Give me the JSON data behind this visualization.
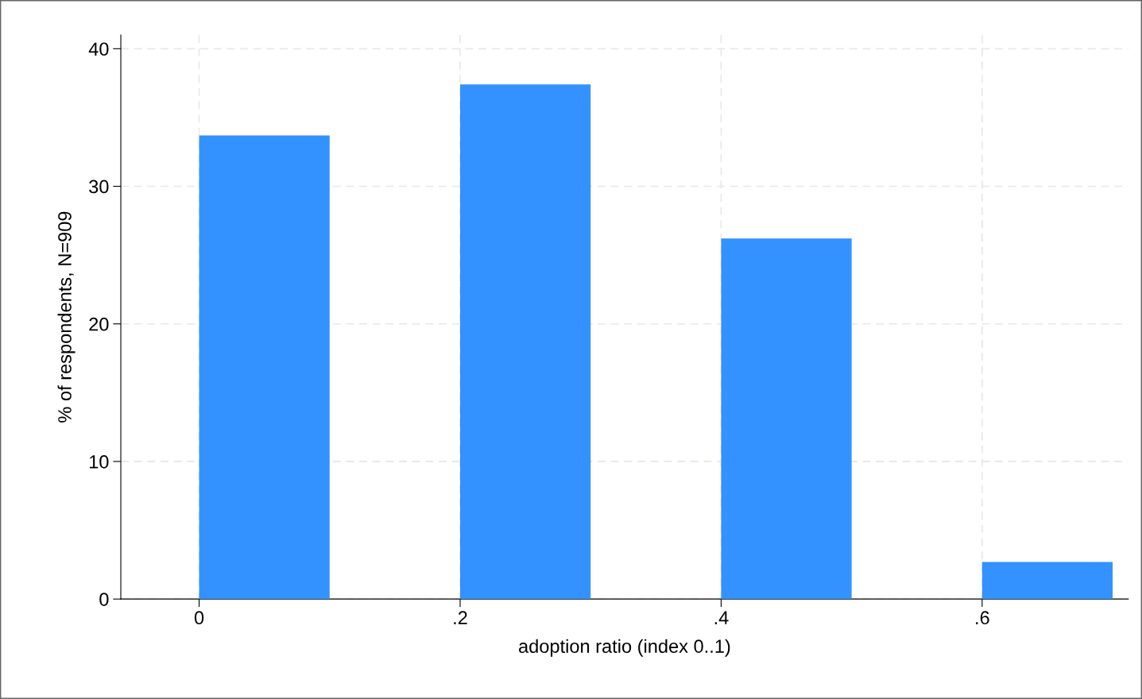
{
  "chart_data": {
    "type": "histogram",
    "xlabel": "adoption ratio (index 0..1)",
    "ylabel": "% of respondents, N=909",
    "bins": [
      0,
      0.1,
      0.2,
      0.3,
      0.4,
      0.5,
      0.6,
      0.7
    ],
    "values": [
      33.7,
      0,
      37.4,
      0,
      26.2,
      0,
      2.7
    ],
    "color": "#3392ff",
    "xlim": [
      -0.06,
      0.712
    ],
    "ylim": [
      0,
      41
    ],
    "xticks": [
      {
        "value": 0,
        "label": "0"
      },
      {
        "value": 0.2,
        "label": ".2"
      },
      {
        "value": 0.4,
        "label": ".4"
      },
      {
        "value": 0.6,
        "label": ".6"
      }
    ],
    "yticks": [
      0,
      10,
      20,
      30,
      40
    ],
    "grid": true
  }
}
